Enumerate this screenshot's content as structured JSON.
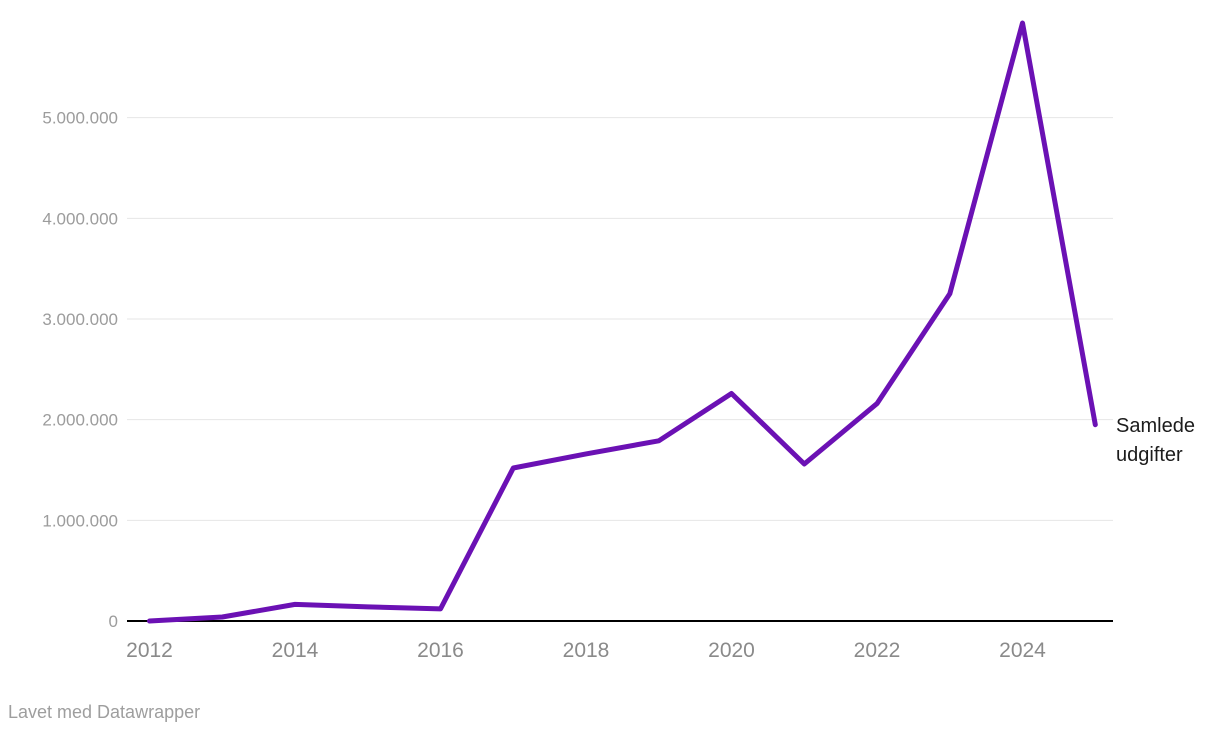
{
  "chart_data": {
    "type": "line",
    "x": [
      2012,
      2013,
      2014,
      2015,
      2016,
      2017,
      2018,
      2019,
      2020,
      2021,
      2022,
      2023,
      2024,
      2025
    ],
    "series": [
      {
        "name": "Samlede udgifter",
        "values": [
          0,
          40000,
          165000,
          140000,
          120000,
          1520000,
          1660000,
          1790000,
          2260000,
          1560000,
          2160000,
          3250000,
          5940000,
          1950000
        ]
      }
    ],
    "title": "",
    "xlabel": "",
    "ylabel": "",
    "xlim": [
      2012,
      2025
    ],
    "ylim": [
      0,
      6020000
    ],
    "grid": true,
    "legend_position": "right-of-line-end",
    "line_color": "#6b11b4",
    "axis_color": "#000000",
    "gridline_color": "#e6e6e6",
    "y_tick_color": "#9c9c9c",
    "x_tick_color": "#8a8a8a",
    "y_ticks": [
      {
        "value": 0,
        "label": "0"
      },
      {
        "value": 1000000,
        "label": "1.000.000"
      },
      {
        "value": 2000000,
        "label": "2.000.000"
      },
      {
        "value": 3000000,
        "label": "3.000.000"
      },
      {
        "value": 4000000,
        "label": "4.000.000"
      },
      {
        "value": 5000000,
        "label": "5.000.000"
      }
    ],
    "x_ticks": [
      {
        "value": 2012,
        "label": "2012"
      },
      {
        "value": 2014,
        "label": "2014"
      },
      {
        "value": 2016,
        "label": "2016"
      },
      {
        "value": 2018,
        "label": "2018"
      },
      {
        "value": 2020,
        "label": "2020"
      },
      {
        "value": 2022,
        "label": "2022"
      },
      {
        "value": 2024,
        "label": "2024"
      }
    ]
  },
  "footer": {
    "attribution": "Lavet med Datawrapper"
  }
}
